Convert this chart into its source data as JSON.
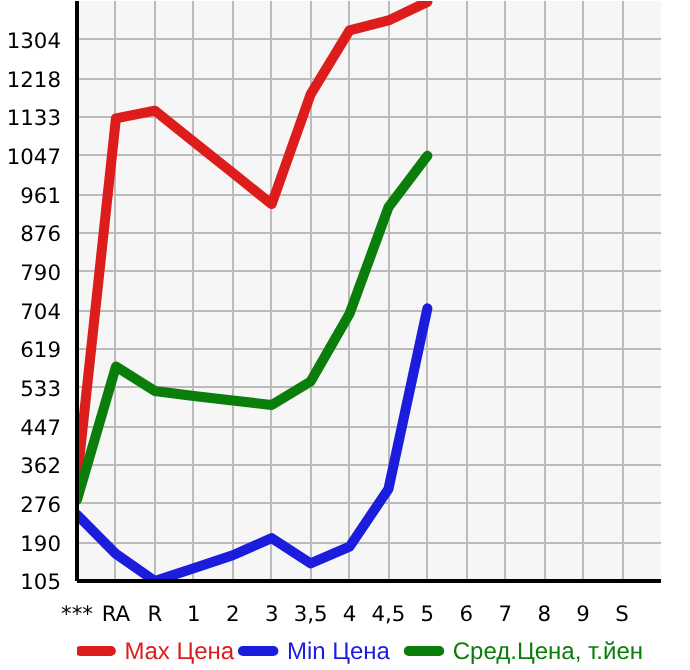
{
  "chart_data": {
    "type": "line",
    "categories": [
      "***",
      "RA",
      "R",
      "1",
      "2",
      "3",
      "3,5",
      "4",
      "4,5",
      "5",
      "6",
      "7",
      "8",
      "9",
      "S"
    ],
    "series": [
      {
        "name": "Max Цена",
        "color": "#dd1c1c",
        "values": [
          328,
          1130,
          1147,
          1078,
          1009,
          940,
          1183,
          1325,
          1347,
          1388,
          null,
          null,
          null,
          null,
          null
        ]
      },
      {
        "name": "Min Цена",
        "color": "#1c1cdd",
        "values": [
          252,
          165,
          105,
          133,
          162,
          200,
          144,
          181,
          309,
          709,
          null,
          null,
          null,
          null,
          null
        ]
      },
      {
        "name": "Сред.Цена, т.йен",
        "color": "#0a7d0a",
        "values": [
          285,
          580,
          526,
          515,
          505,
          495,
          547,
          697,
          933,
          1047,
          null,
          null,
          null,
          null,
          null
        ]
      }
    ],
    "ylim": [
      105,
      1390
    ],
    "yticks": [
      105,
      190,
      276,
      362,
      447,
      533,
      619,
      704,
      790,
      876,
      961,
      1047,
      1133,
      1218,
      1304
    ],
    "grid": true,
    "legend": "bottom",
    "marker": "none",
    "line_style": "solid"
  }
}
